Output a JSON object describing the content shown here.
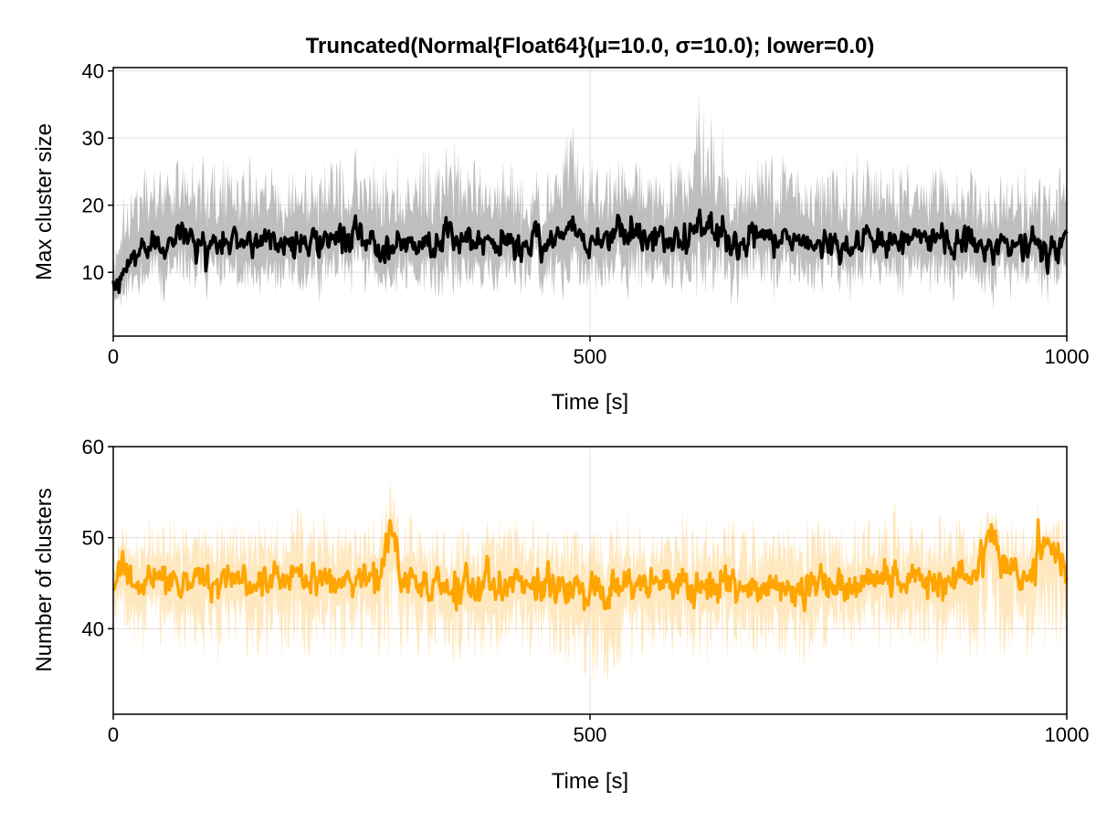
{
  "chart_data": [
    {
      "type": "line",
      "title": "Truncated(Normal{Float64}(μ=10.0, σ=10.0); lower=0.0)",
      "xlabel": "Time [s]",
      "ylabel": "Max cluster size",
      "xlim": [
        0,
        1000
      ],
      "ylim": [
        0.5,
        40.5
      ],
      "xticks": [
        "0",
        "500",
        "1000"
      ],
      "yticks": [
        "10",
        "20",
        "30",
        "40"
      ],
      "grid": true,
      "series_color": "#000000",
      "band_color": "#b3b3b3",
      "approx_mean": 14.5,
      "x": [
        0,
        10,
        20,
        30,
        40,
        50,
        60,
        70,
        80,
        90,
        100,
        150,
        200,
        250,
        300,
        350,
        400,
        450,
        480,
        500,
        530,
        550,
        600,
        610,
        650,
        700,
        750,
        800,
        850,
        900,
        950,
        1000
      ],
      "values": [
        6,
        10,
        12,
        14,
        14.5,
        15,
        14.5,
        16,
        15,
        14,
        14,
        15,
        14.5,
        15,
        14,
        15,
        14,
        14.5,
        17,
        14,
        17,
        15,
        14.5,
        18,
        14.5,
        15,
        14,
        14.5,
        15,
        14.5,
        14,
        14
      ],
      "band_upper": [
        13,
        22,
        24,
        26,
        28,
        27,
        26,
        28,
        27,
        26,
        26,
        27,
        26,
        27,
        26,
        31,
        26,
        27,
        32,
        26,
        29,
        27,
        27,
        39,
        27,
        28,
        26,
        27,
        27,
        26,
        25,
        26
      ],
      "band_lower": [
        4,
        5,
        6,
        7,
        7,
        7,
        7,
        7,
        7,
        7,
        7,
        7,
        7,
        7,
        7,
        7,
        7,
        7,
        7,
        7,
        7,
        7,
        7,
        7,
        7,
        7,
        7,
        7,
        7,
        7,
        7,
        7
      ]
    },
    {
      "type": "line",
      "title": "",
      "xlabel": "Time [s]",
      "ylabel": "Number of clusters",
      "xlim": [
        0,
        1000
      ],
      "ylim": [
        30.6,
        60
      ],
      "xticks": [
        "0",
        "500",
        "1000"
      ],
      "yticks": [
        "40",
        "50",
        "60"
      ],
      "grid": true,
      "series_color": "#ffa500",
      "band_color": "#ffa500",
      "approx_mean": 45,
      "x": [
        0,
        10,
        20,
        30,
        40,
        50,
        100,
        150,
        200,
        250,
        280,
        290,
        300,
        350,
        400,
        450,
        500,
        550,
        600,
        650,
        700,
        750,
        800,
        850,
        900,
        920,
        950,
        980,
        1000
      ],
      "values": [
        44,
        48,
        45,
        45,
        44.5,
        45,
        45.5,
        45,
        46,
        45,
        45.5,
        52,
        45,
        44.5,
        45,
        45,
        44.5,
        45,
        45,
        45,
        44,
        45,
        45,
        45,
        46,
        50.5,
        45,
        50.5,
        44.5
      ],
      "band_upper": [
        49,
        52,
        51,
        52,
        51,
        53,
        52,
        52,
        53,
        52,
        52,
        57,
        52,
        51,
        52,
        52,
        52,
        52,
        52,
        52,
        51,
        52,
        52,
        52,
        52,
        53,
        51,
        53,
        50
      ],
      "band_lower": [
        40,
        38,
        38,
        37,
        37,
        37,
        37,
        37,
        37,
        37,
        37,
        37,
        37,
        37,
        37,
        37,
        33,
        37,
        37,
        37,
        36,
        37,
        37,
        37,
        37,
        37,
        37,
        37,
        38
      ]
    }
  ]
}
